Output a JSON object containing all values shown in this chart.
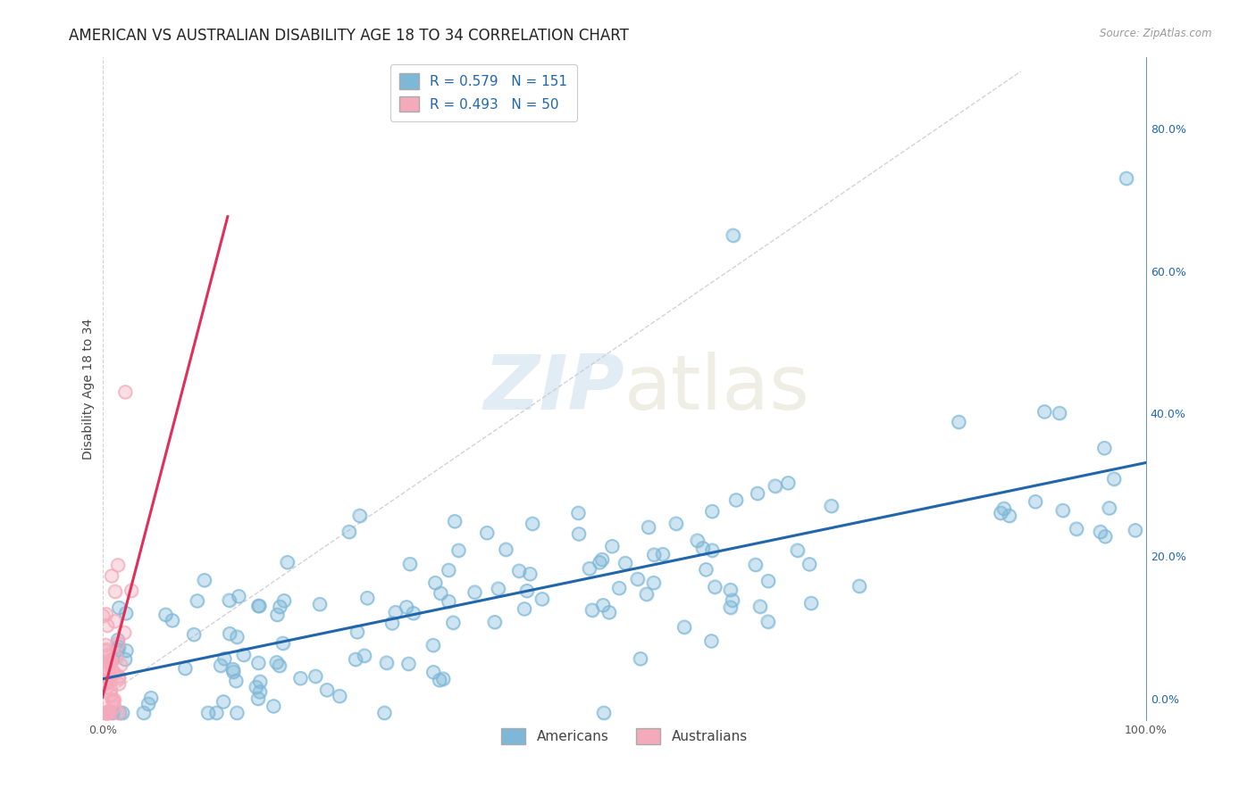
{
  "title": "AMERICAN VS AUSTRALIAN DISABILITY AGE 18 TO 34 CORRELATION CHART",
  "source": "Source: ZipAtlas.com",
  "ylabel": "Disability Age 18 to 34",
  "xlim": [
    0.0,
    1.0
  ],
  "ylim": [
    -0.03,
    0.9
  ],
  "americans_R": 0.579,
  "americans_N": 151,
  "australians_R": 0.493,
  "australians_N": 50,
  "american_color": "#7EB8D8",
  "american_line_color": "#2166AC",
  "australian_color": "#F4AABB",
  "australian_line_color": "#E0305A",
  "background_color": "#FFFFFF",
  "grid_color": "#CCCCCC",
  "watermark_zip": "ZIP",
  "watermark_atlas": "atlas",
  "title_fontsize": 12,
  "axis_label_fontsize": 10,
  "tick_fontsize": 9,
  "legend_fontsize": 11,
  "right_yticks": [
    0.0,
    0.2,
    0.4,
    0.6,
    0.8
  ],
  "right_ytick_labels": [
    "0.0%",
    "20.0%",
    "40.0%",
    "60.0%",
    "80.0%"
  ],
  "xtick_positions": [
    0.0,
    1.0
  ],
  "xtick_labels": [
    "0.0%",
    "100.0%"
  ]
}
